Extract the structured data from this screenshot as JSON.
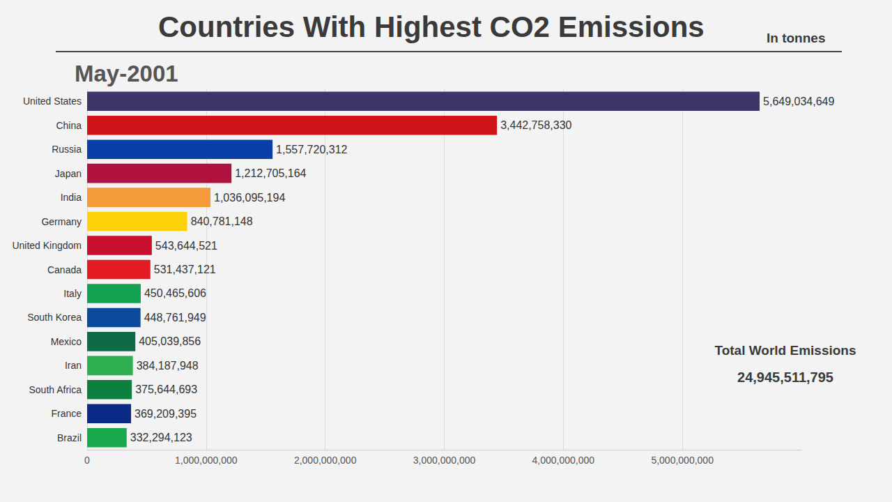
{
  "chart_data": {
    "type": "bar",
    "orientation": "horizontal",
    "title": "Countries With Highest CO2 Emissions",
    "subtitle": "In tonnes",
    "annotations": [
      "May-2001",
      "Total World Emissions",
      "24,945,511,795"
    ],
    "categories": [
      "United States",
      "China",
      "Russia",
      "Japan",
      "India",
      "Germany",
      "United Kingdom",
      "Canada",
      "Italy",
      "South Korea",
      "Mexico",
      "Iran",
      "South Africa",
      "France",
      "Brazil"
    ],
    "values": [
      5649034649,
      3442758330,
      1557720312,
      1212705164,
      1036095194,
      840781148,
      543644521,
      531437121,
      450465606,
      448761949,
      405039856,
      384187948,
      375644693,
      369209395,
      332294123
    ],
    "value_labels": [
      "5,649,034,649",
      "3,442,758,330",
      "1,557,720,312",
      "1,212,705,164",
      "1,036,095,194",
      "840,781,148",
      "543,644,521",
      "531,437,121",
      "450,465,606",
      "448,761,949",
      "405,039,856",
      "384,187,948",
      "375,644,693",
      "369,209,395",
      "332,294,123"
    ],
    "colors": [
      "#3d3567",
      "#d0151a",
      "#0a3fa8",
      "#b0123f",
      "#f59a3b",
      "#fcd20a",
      "#c8102e",
      "#e31b23",
      "#12a150",
      "#0c4a9c",
      "#0e6b45",
      "#2fae4f",
      "#0d7f3f",
      "#0b2a86",
      "#16a84b"
    ],
    "xlim": [
      0,
      6000000000
    ],
    "xticks": [
      0,
      {
        "value": 1000000000,
        "label": "1,000,000,000"
      },
      {
        "value": 2000000000,
        "label": "2,000,000,000"
      },
      {
        "value": 3000000000,
        "label": "3,000,000,000"
      },
      {
        "value": 4000000000,
        "label": "4,000,000,000"
      },
      {
        "value": 5000000000,
        "label": "5,000,000,000"
      }
    ],
    "grid": true,
    "data_labels": true
  }
}
